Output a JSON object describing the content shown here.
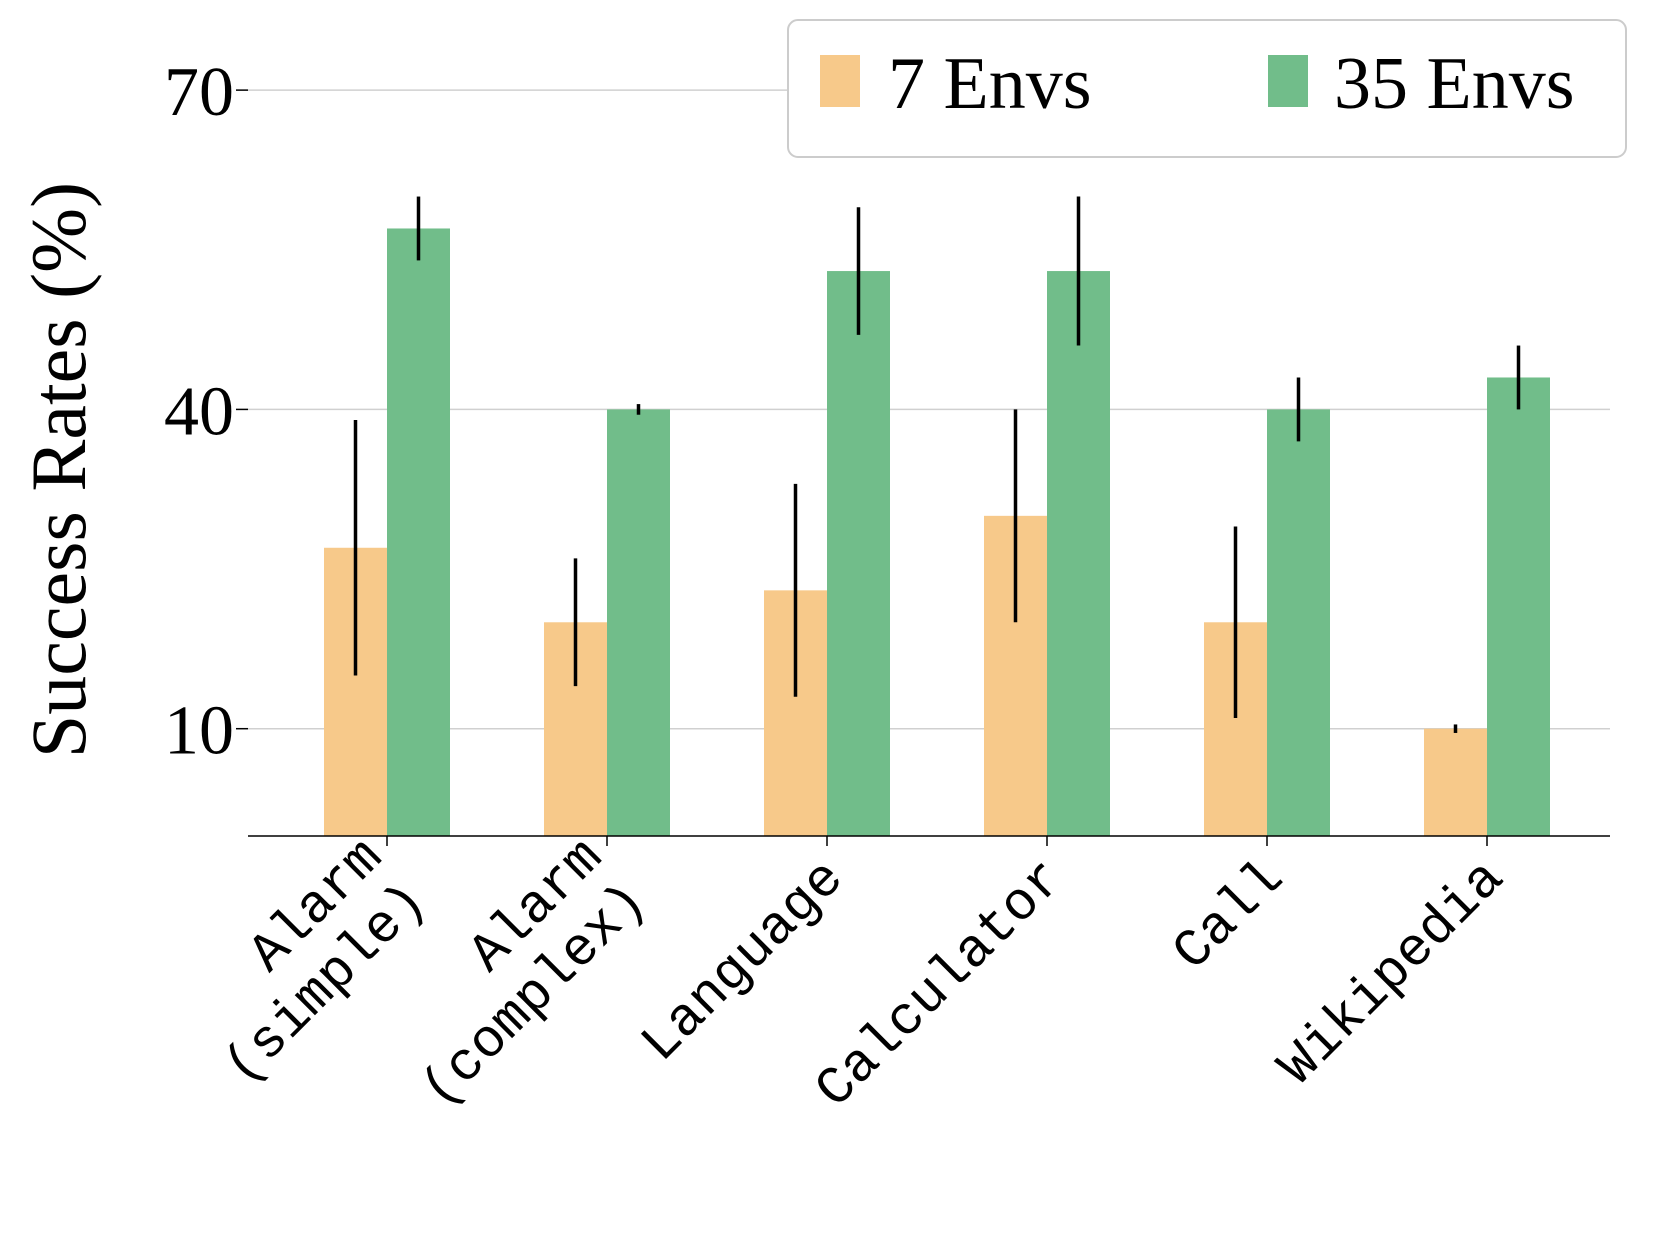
{
  "chart_data": {
    "type": "bar",
    "title": "",
    "xlabel": "",
    "ylabel": "Success Rates (%)",
    "ylim": [
      0,
      77
    ],
    "yticks": [
      10,
      40,
      70
    ],
    "grid": "horizontal",
    "legend_position": "top-right",
    "categories": [
      [
        "Alarm",
        "(simple)"
      ],
      [
        "Alarm",
        "(complex)"
      ],
      [
        "Language"
      ],
      [
        "Calculator"
      ],
      [
        "Call"
      ],
      [
        "Wikipedia"
      ]
    ],
    "series": [
      {
        "name": "7 Envs",
        "color": "#F7C98A",
        "values": [
          27,
          20,
          23,
          30,
          20,
          10
        ],
        "err_low": [
          15,
          14,
          13,
          20,
          11,
          9.6
        ],
        "err_high": [
          39,
          26,
          33,
          40,
          29,
          10.4
        ]
      },
      {
        "name": "35 Envs",
        "color": "#71BD8A",
        "values": [
          57,
          40,
          53,
          53,
          40,
          43
        ],
        "err_low": [
          54,
          39.5,
          47,
          46,
          37,
          40
        ],
        "err_high": [
          60,
          40.5,
          59,
          60,
          43,
          46
        ]
      }
    ]
  }
}
